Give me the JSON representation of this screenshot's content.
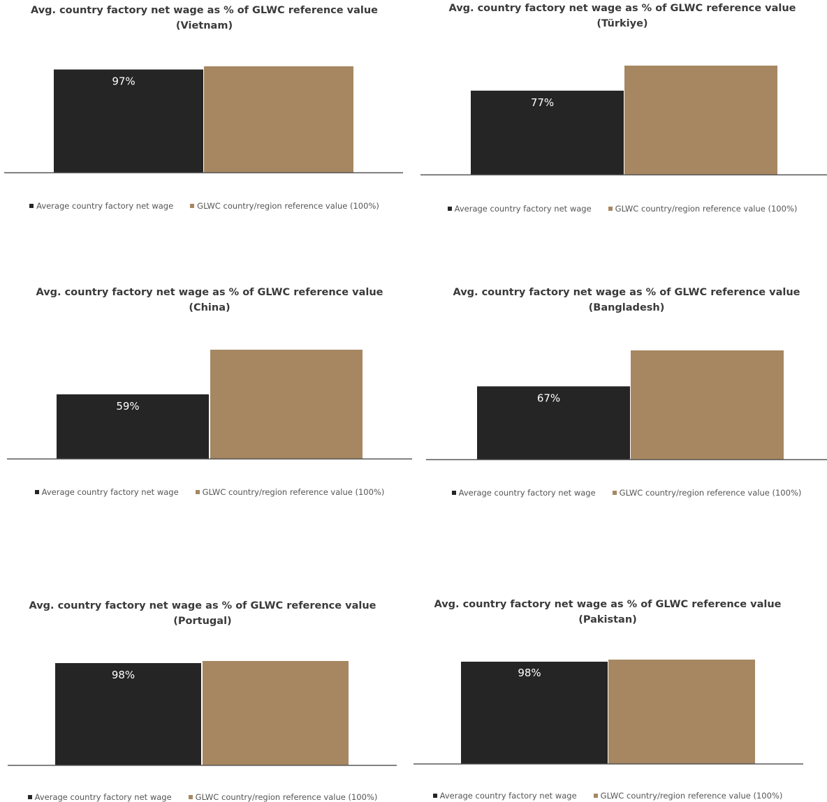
{
  "colors": {
    "net_wage": "#252525",
    "reference": "#a68761",
    "axis": "#555555",
    "label": "#ffffff"
  },
  "legend": {
    "net_wage": "Average country factory net wage",
    "reference": "GLWC country/region reference value (100%)"
  },
  "chart_data": [
    {
      "type": "bar",
      "title": "Avg. country factory net wage as % of GLWC reference value",
      "subtitle": "(Vietnam)",
      "series": [
        {
          "name": "Average country factory net wage",
          "value": 97,
          "label": "97%"
        },
        {
          "name": "GLWC country/region reference value (100%)",
          "value": 100
        }
      ]
    },
    {
      "type": "bar",
      "title": "Avg. country factory net wage as % of GLWC reference value",
      "subtitle": "(Türkiye)",
      "series": [
        {
          "name": "Average country factory net wage",
          "value": 77,
          "label": "77%"
        },
        {
          "name": "GLWC country/region reference value (100%)",
          "value": 100
        }
      ]
    },
    {
      "type": "bar",
      "title": "Avg. country factory net wage as % of GLWC reference value",
      "subtitle": "(China)",
      "series": [
        {
          "name": "Average country factory net wage",
          "value": 59,
          "label": "59%"
        },
        {
          "name": "GLWC country/region reference value (100%)",
          "value": 100
        }
      ]
    },
    {
      "type": "bar",
      "title": "Avg. country factory net wage as % of GLWC reference value",
      "subtitle": "(Bangladesh)",
      "series": [
        {
          "name": "Average country factory net wage",
          "value": 67,
          "label": "67%"
        },
        {
          "name": "GLWC country/region reference value (100%)",
          "value": 100
        }
      ]
    },
    {
      "type": "bar",
      "title": "Avg. country factory net wage as % of GLWC reference value",
      "subtitle": "(Portugal)",
      "series": [
        {
          "name": "Average country factory net wage",
          "value": 98,
          "label": "98%"
        },
        {
          "name": "GLWC country/region reference value (100%)",
          "value": 100
        }
      ]
    },
    {
      "type": "bar",
      "title": "Avg. country factory net wage as % of GLWC reference value",
      "subtitle": "(Pakistan)",
      "series": [
        {
          "name": "Average country factory net wage",
          "value": 98,
          "label": "98%"
        },
        {
          "name": "GLWC country/region reference value (100%)",
          "value": 100
        }
      ]
    }
  ]
}
